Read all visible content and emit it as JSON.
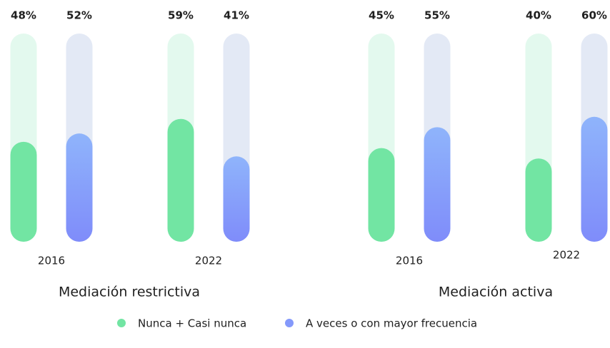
{
  "chart_data": {
    "type": "bar",
    "categories": [
      "2016",
      "2022",
      "2016",
      "2022"
    ],
    "groups": [
      "Mediación restrictiva",
      "Mediación activa"
    ],
    "series": [
      {
        "name": "Nunca + Casi nunca",
        "color": "#72e5a3",
        "values": [
          48,
          59,
          45,
          40
        ],
        "value_labels": [
          "48%",
          "59%",
          "45%",
          "40%"
        ]
      },
      {
        "name": "A veces o con mayor frecuencia",
        "color": "#8499fb",
        "values": [
          52,
          41,
          55,
          60
        ],
        "value_labels": [
          "52%",
          "41%",
          "55%",
          "60%"
        ]
      }
    ],
    "ylim": [
      0,
      100
    ]
  }
}
